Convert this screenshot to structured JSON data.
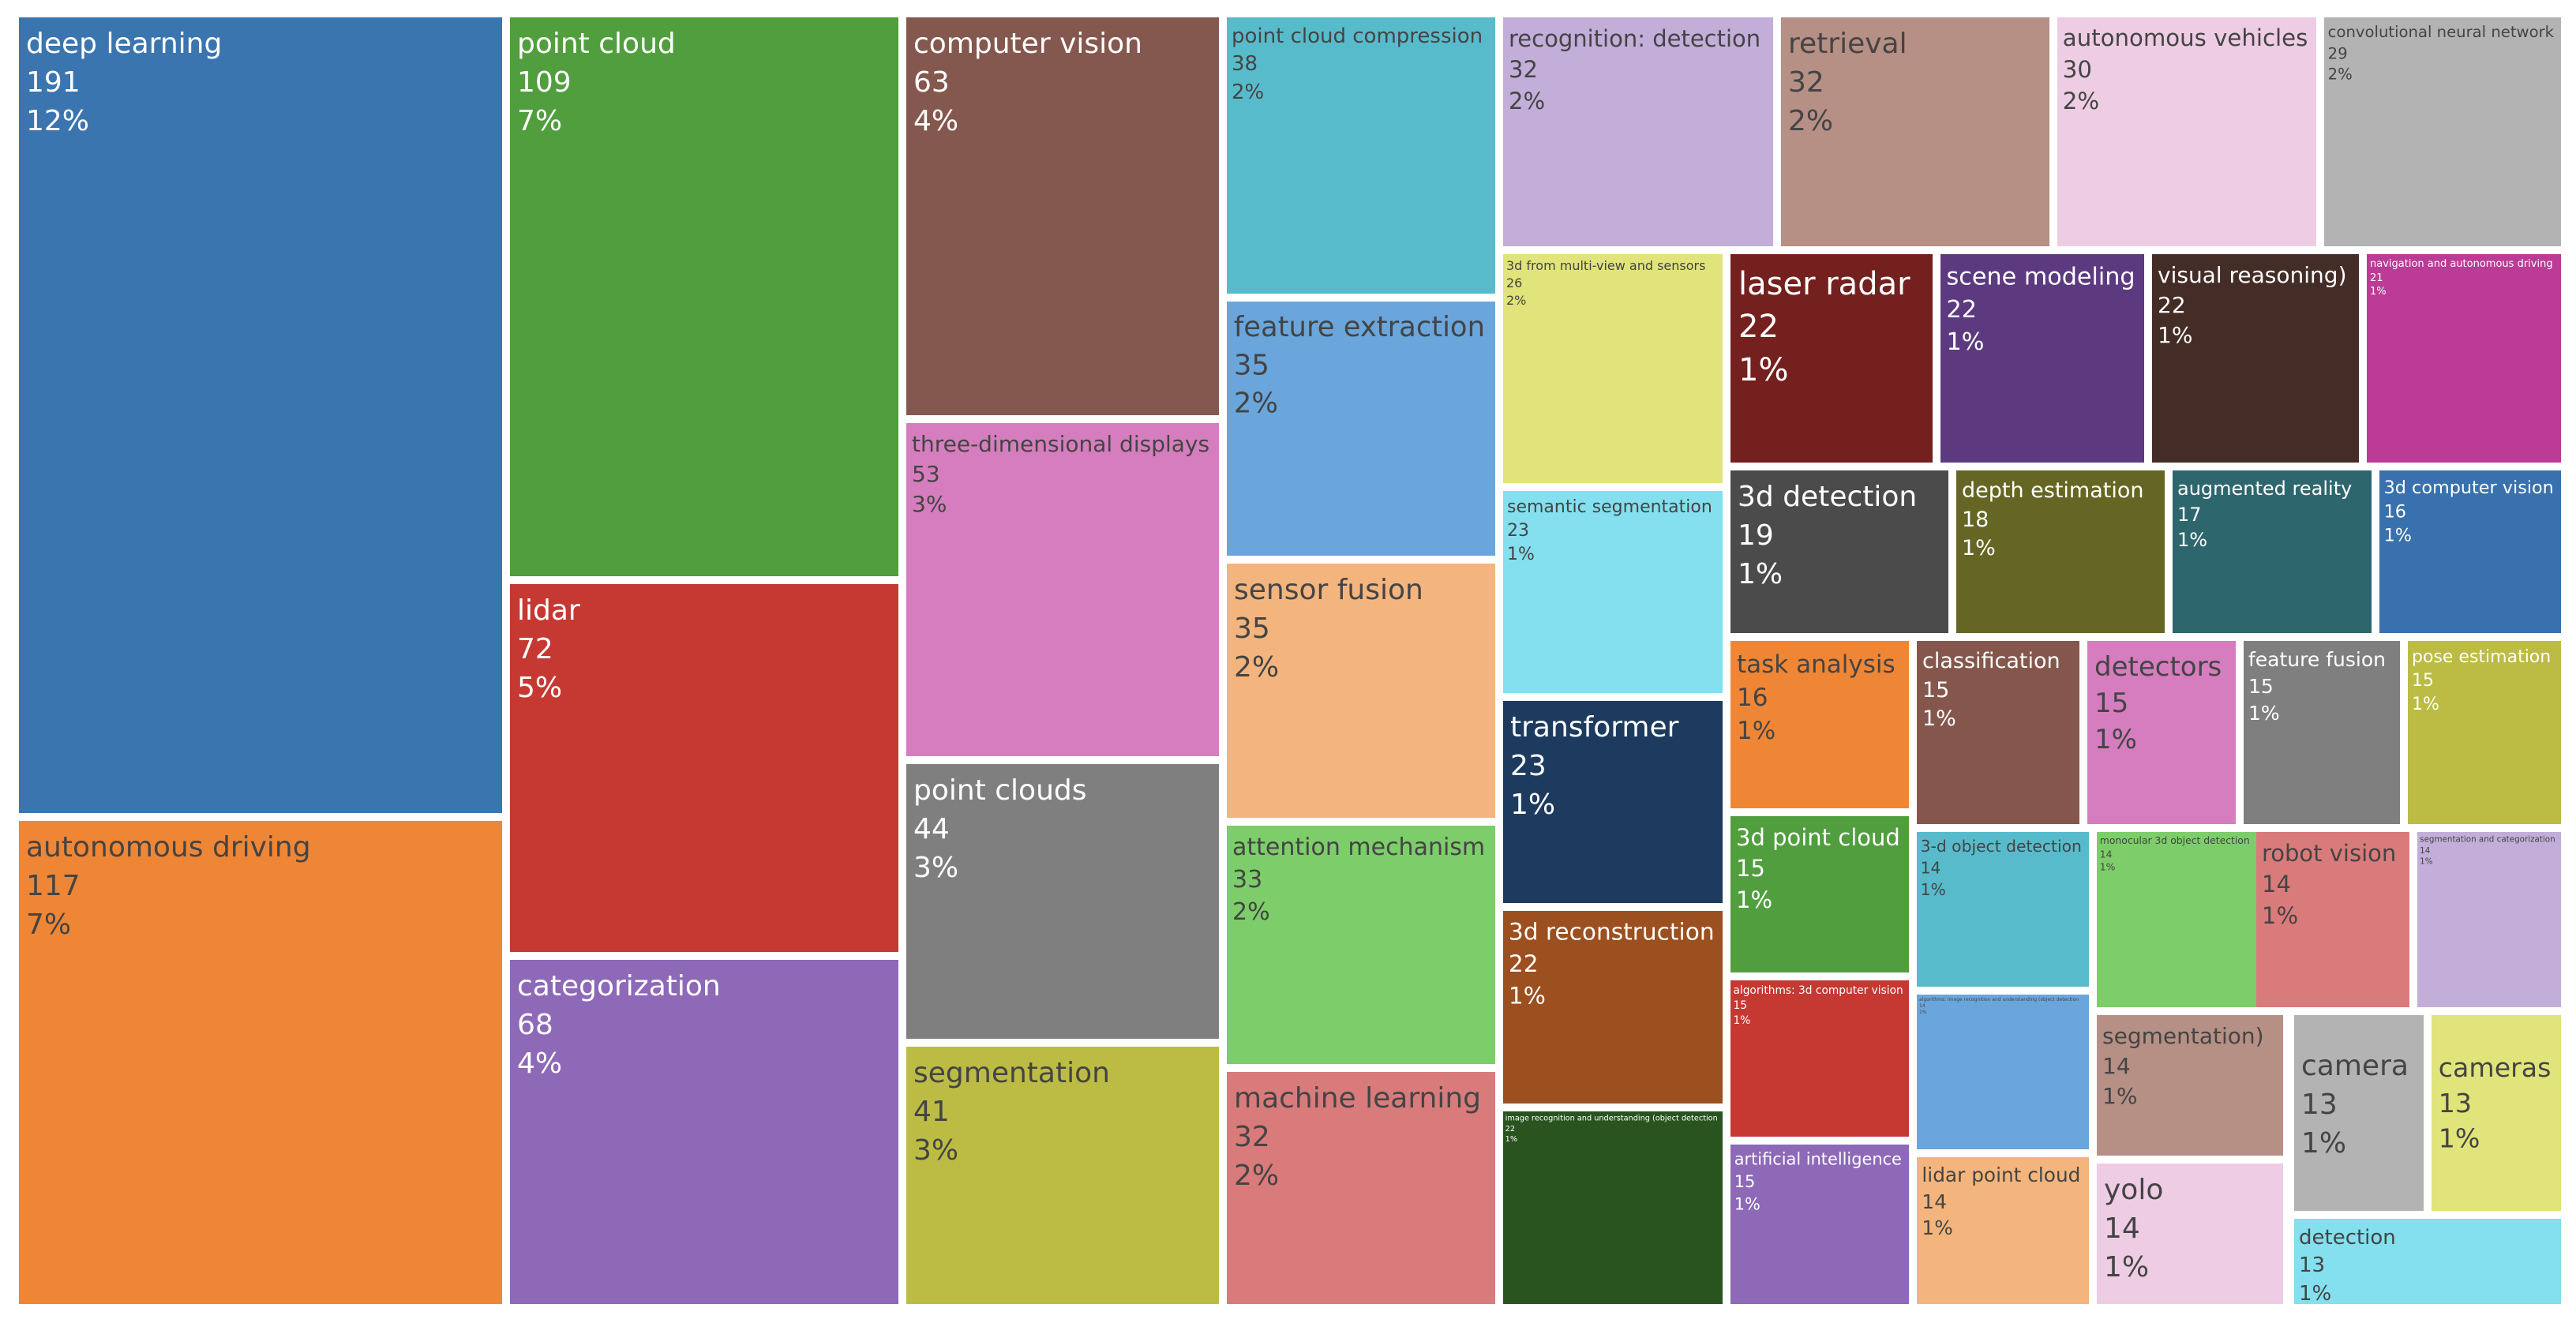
{
  "chart_data": {
    "type": "treemap",
    "items": [
      {
        "label": "deep learning",
        "value": 191,
        "percent": "12%",
        "color": "#3b75af",
        "text_color": "#ffffff"
      },
      {
        "label": "autonomous driving",
        "value": 117,
        "percent": "7%",
        "color": "#ef8636",
        "text_color": "#444444"
      },
      {
        "label": "point cloud",
        "value": 109,
        "percent": "7%",
        "color": "#519e3e",
        "text_color": "#ffffff"
      },
      {
        "label": "lidar",
        "value": 72,
        "percent": "5%",
        "color": "#c53932",
        "text_color": "#ffffff"
      },
      {
        "label": "categorization",
        "value": 68,
        "percent": "4%",
        "color": "#8d69b8",
        "text_color": "#ffffff"
      },
      {
        "label": "computer vision",
        "value": 63,
        "percent": "4%",
        "color": "#84584e",
        "text_color": "#ffffff"
      },
      {
        "label": "three-dimensional displays",
        "value": 53,
        "percent": "3%",
        "color": "#d57dbe",
        "text_color": "#444444"
      },
      {
        "label": "point clouds",
        "value": 44,
        "percent": "3%",
        "color": "#7f7f7f",
        "text_color": "#ffffff"
      },
      {
        "label": "segmentation",
        "value": 41,
        "percent": "3%",
        "color": "#bcbc45",
        "text_color": "#444444"
      },
      {
        "label": "point cloud compression",
        "value": 38,
        "percent": "2%",
        "color": "#58bbcc",
        "text_color": "#444444"
      },
      {
        "label": "feature extraction",
        "value": 35,
        "percent": "2%",
        "color": "#6aa6dc",
        "text_color": "#444444"
      },
      {
        "label": "sensor fusion",
        "value": 35,
        "percent": "2%",
        "color": "#f3b57d",
        "text_color": "#444444"
      },
      {
        "label": "attention mechanism",
        "value": 33,
        "percent": "2%",
        "color": "#7dcd6b",
        "text_color": "#444444"
      },
      {
        "label": "machine learning",
        "value": 32,
        "percent": "2%",
        "color": "#d97b7b",
        "text_color": "#444444"
      },
      {
        "label": "recognition: detection",
        "value": 32,
        "percent": "2%",
        "color": "#c2aed9",
        "text_color": "#444444"
      },
      {
        "label": "retrieval",
        "value": 32,
        "percent": "2%",
        "color": "#b68f85",
        "text_color": "#444444"
      },
      {
        "label": "autonomous vehicles",
        "value": 30,
        "percent": "2%",
        "color": "#eecde4",
        "text_color": "#444444"
      },
      {
        "label": "convolutional neural network",
        "value": 29,
        "percent": "2%",
        "color": "#b3b3b3",
        "text_color": "#444444"
      },
      {
        "label": "3d from multi-view and sensors",
        "value": 26,
        "percent": "2%",
        "color": "#e0e47a",
        "text_color": "#444444"
      },
      {
        "label": "semantic segmentation",
        "value": 23,
        "percent": "1%",
        "color": "#84dfee",
        "text_color": "#444444"
      },
      {
        "label": "transformer",
        "value": 23,
        "percent": "1%",
        "color": "#1d3b5e",
        "text_color": "#ffffff"
      },
      {
        "label": "3d reconstruction",
        "value": 22,
        "percent": "1%",
        "color": "#9c4f1f",
        "text_color": "#ffffff"
      },
      {
        "label": "image recognition and understanding (object detection",
        "value": 22,
        "percent": "1%",
        "color": "#29531f",
        "text_color": "#ffffff"
      },
      {
        "label": "laser radar",
        "value": 22,
        "percent": "1%",
        "color": "#74201f",
        "text_color": "#ffffff"
      },
      {
        "label": "scene modeling",
        "value": 22,
        "percent": "1%",
        "color": "#5d3a80",
        "text_color": "#ffffff"
      },
      {
        "label": "visual reasoning)",
        "value": 22,
        "percent": "1%",
        "color": "#452d27",
        "text_color": "#ffffff"
      },
      {
        "label": "navigation and autonomous driving",
        "value": 21,
        "percent": "1%",
        "color": "#bb3b96",
        "text_color": "#ffffff"
      },
      {
        "label": "3d detection",
        "value": 19,
        "percent": "1%",
        "color": "#4b4b4b",
        "text_color": "#ffffff"
      },
      {
        "label": "depth estimation",
        "value": 18,
        "percent": "1%",
        "color": "#656623",
        "text_color": "#ffffff"
      },
      {
        "label": "augmented reality",
        "value": 17,
        "percent": "1%",
        "color": "#2e666e",
        "text_color": "#ffffff"
      },
      {
        "label": "3d computer vision",
        "value": 16,
        "percent": "1%",
        "color": "#3871ad",
        "text_color": "#ffffff"
      },
      {
        "label": "task analysis",
        "value": 16,
        "percent": "1%",
        "color": "#ef8636",
        "text_color": "#444444"
      },
      {
        "label": "classification",
        "value": 15,
        "percent": "1%",
        "color": "#85574c",
        "text_color": "#ffffff"
      },
      {
        "label": "detectors",
        "value": 15,
        "percent": "1%",
        "color": "#d57dbe",
        "text_color": "#444444"
      },
      {
        "label": "feature fusion",
        "value": 15,
        "percent": "1%",
        "color": "#7f7f7f",
        "text_color": "#ffffff"
      },
      {
        "label": "pose estimation",
        "value": 15,
        "percent": "1%",
        "color": "#bcbc45",
        "text_color": "#ffffff"
      },
      {
        "label": "3d point cloud",
        "value": 15,
        "percent": "1%",
        "color": "#519e3e",
        "text_color": "#ffffff"
      },
      {
        "label": "algorithms: 3d computer vision",
        "value": 15,
        "percent": "1%",
        "color": "#c53932",
        "text_color": "#ffffff"
      },
      {
        "label": "artificial intelligence",
        "value": 15,
        "percent": "1%",
        "color": "#8d69b8",
        "text_color": "#ffffff"
      },
      {
        "label": "3-d object detection",
        "value": 14,
        "percent": "1%",
        "color": "#58bbcc",
        "text_color": "#444444"
      },
      {
        "label": "monocular 3d object detection",
        "value": 14,
        "percent": "1%",
        "color": "#7dcd6b",
        "text_color": "#444444"
      },
      {
        "label": "robot vision",
        "value": 14,
        "percent": "1%",
        "color": "#d97b7b",
        "text_color": "#444444"
      },
      {
        "label": "segmentation and categorization",
        "value": 14,
        "percent": "1%",
        "color": "#c2aed9",
        "text_color": "#444444"
      },
      {
        "label": "algorithms: image recognition and understanding (object detection",
        "value": 14,
        "percent": "1%",
        "color": "#6aa6dc",
        "text_color": "#444444"
      },
      {
        "label": "lidar point cloud",
        "value": 14,
        "percent": "1%",
        "color": "#f3b57d",
        "text_color": "#444444"
      },
      {
        "label": "segmentation)",
        "value": 14,
        "percent": "1%",
        "color": "#b68f85",
        "text_color": "#444444"
      },
      {
        "label": "yolo",
        "value": 14,
        "percent": "1%",
        "color": "#eecde4",
        "text_color": "#444444"
      },
      {
        "label": "camera",
        "value": 13,
        "percent": "1%",
        "color": "#b3b3b3",
        "text_color": "#444444"
      },
      {
        "label": "cameras",
        "value": 13,
        "percent": "1%",
        "color": "#e0e47a",
        "text_color": "#444444"
      },
      {
        "label": "detection",
        "value": 13,
        "percent": "1%",
        "color": "#84dfee",
        "text_color": "#444444"
      }
    ]
  }
}
